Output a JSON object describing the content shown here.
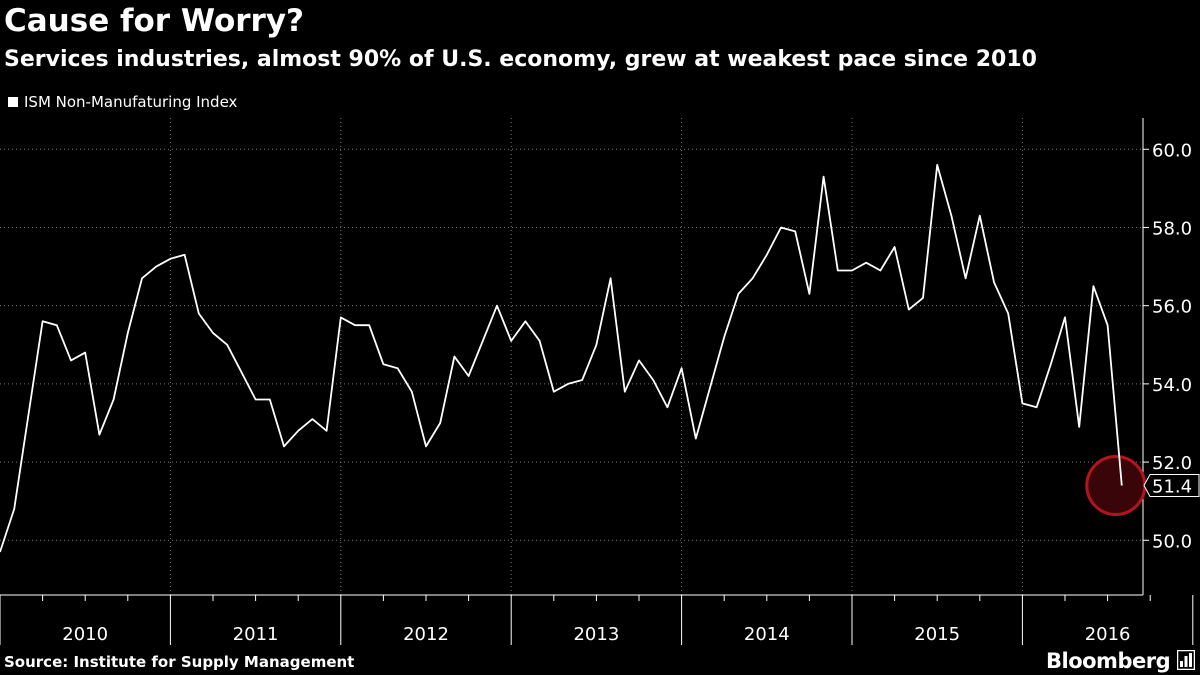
{
  "header": {
    "title": "Cause for Worry?",
    "subtitle": "Services industries, almost 90% of U.S. economy, grew at weakest pace since 2010"
  },
  "footer": {
    "source": "Source: Institute for Supply Management",
    "brand": "Bloomberg"
  },
  "colors": {
    "background": "#000000",
    "line": "#ffffff",
    "highlight": "#b3141e"
  },
  "chart_data": {
    "type": "line",
    "title": "Cause for Worry?",
    "subtitle": "Services industries, almost 90% of U.S. economy, grew at weakest pace since 2010",
    "xlabel": "",
    "ylabel": "",
    "x_tick_labels": [
      "2010",
      "2011",
      "2012",
      "2013",
      "2014",
      "2015",
      "2016"
    ],
    "y_ticks": [
      "50.0",
      "52.0",
      "54.0",
      "56.0",
      "58.0",
      "60.0"
    ],
    "ylim": [
      48.6,
      60.8
    ],
    "y_axis_side": "right",
    "grid": "vertical dotted lines at year boundaries, horizontal dotted lines at y ticks",
    "legend_position": "top-left",
    "series": [
      {
        "name": "ISM Non-Manufaturing Index",
        "x": [
          "2010-01",
          "2010-02",
          "2010-03",
          "2010-04",
          "2010-05",
          "2010-06",
          "2010-07",
          "2010-08",
          "2010-09",
          "2010-10",
          "2010-11",
          "2010-12",
          "2011-01",
          "2011-02",
          "2011-03",
          "2011-04",
          "2011-05",
          "2011-06",
          "2011-07",
          "2011-08",
          "2011-09",
          "2011-10",
          "2011-11",
          "2011-12",
          "2012-01",
          "2012-02",
          "2012-03",
          "2012-04",
          "2012-05",
          "2012-06",
          "2012-07",
          "2012-08",
          "2012-09",
          "2012-10",
          "2012-11",
          "2012-12",
          "2013-01",
          "2013-02",
          "2013-03",
          "2013-04",
          "2013-05",
          "2013-06",
          "2013-07",
          "2013-08",
          "2013-09",
          "2013-10",
          "2013-11",
          "2013-12",
          "2014-01",
          "2014-02",
          "2014-03",
          "2014-04",
          "2014-05",
          "2014-06",
          "2014-07",
          "2014-08",
          "2014-09",
          "2014-10",
          "2014-11",
          "2014-12",
          "2015-01",
          "2015-02",
          "2015-03",
          "2015-04",
          "2015-05",
          "2015-06",
          "2015-07",
          "2015-08",
          "2015-09",
          "2015-10",
          "2015-11",
          "2015-12",
          "2016-01",
          "2016-02",
          "2016-03",
          "2016-04",
          "2016-05",
          "2016-06",
          "2016-07",
          "2016-08"
        ],
        "values": [
          49.7,
          50.8,
          53.2,
          55.6,
          55.5,
          54.6,
          54.8,
          52.7,
          53.6,
          55.3,
          56.7,
          57.0,
          57.2,
          57.3,
          55.8,
          55.3,
          55.0,
          54.3,
          53.6,
          53.6,
          52.4,
          52.8,
          53.1,
          52.8,
          55.7,
          55.5,
          55.5,
          54.5,
          54.4,
          53.8,
          52.4,
          53.0,
          54.7,
          54.2,
          55.1,
          56.0,
          55.1,
          55.6,
          55.1,
          53.8,
          54.0,
          54.1,
          55.0,
          56.7,
          53.8,
          54.6,
          54.1,
          53.4,
          54.4,
          52.6,
          53.9,
          55.2,
          56.3,
          56.7,
          57.3,
          58.0,
          57.9,
          56.3,
          59.3,
          56.9,
          56.9,
          57.1,
          56.9,
          57.5,
          55.9,
          56.2,
          59.6,
          58.3,
          56.7,
          58.3,
          56.6,
          55.8,
          53.5,
          53.4,
          54.5,
          55.7,
          52.9,
          56.5,
          55.5,
          51.4
        ]
      }
    ],
    "callout": {
      "label": "51.4",
      "date": "2016-08",
      "value": 51.4
    }
  }
}
